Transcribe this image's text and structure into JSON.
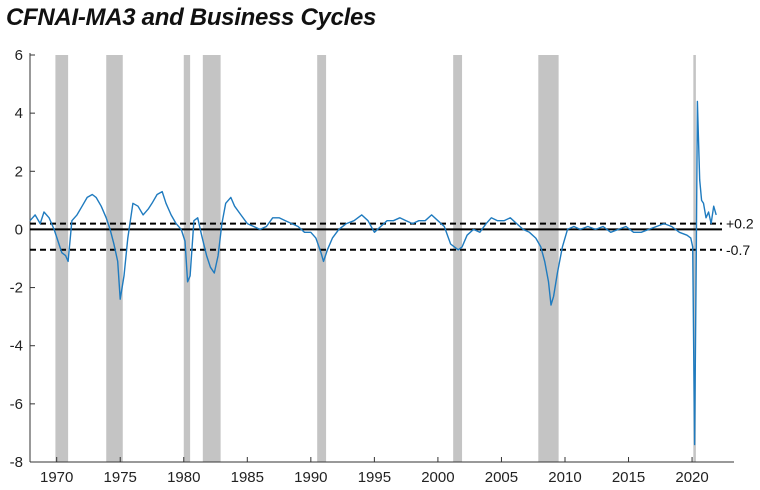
{
  "chart_data": {
    "type": "line",
    "title": "CFNAI-MA3 and Business Cycles",
    "xlabel": "",
    "ylabel": "",
    "xlim": [
      1967.9,
      2023.3
    ],
    "ylim": [
      -8,
      6
    ],
    "y_ticks": [
      "6",
      "4",
      "2",
      "0",
      "-2",
      "-4",
      "-6",
      "-8"
    ],
    "y_tick_values": [
      6,
      4,
      2,
      0,
      -2,
      -4,
      -6,
      -8
    ],
    "x_ticks": [
      "1970",
      "1975",
      "1980",
      "1985",
      "1990",
      "1995",
      "2000",
      "2005",
      "2010",
      "2015",
      "2020"
    ],
    "x_tick_values": [
      1970,
      1975,
      1980,
      1985,
      1990,
      1995,
      2000,
      2005,
      2010,
      2015,
      2020
    ],
    "grid": false,
    "colors": {
      "series": "#1f7bbf",
      "recession": "#c4c4c4",
      "reference": "#000000"
    },
    "recessions": [
      {
        "start": 1969.9,
        "end": 1970.9
      },
      {
        "start": 1973.9,
        "end": 1975.2
      },
      {
        "start": 1980.0,
        "end": 1980.5
      },
      {
        "start": 1981.5,
        "end": 1982.9
      },
      {
        "start": 1990.5,
        "end": 1991.2
      },
      {
        "start": 2001.2,
        "end": 2001.9
      },
      {
        "start": 2007.9,
        "end": 2009.5
      },
      {
        "start": 2020.1,
        "end": 2020.3
      }
    ],
    "reference_lines": [
      {
        "value": 0.2,
        "label": "+0.2",
        "style": "dashed"
      },
      {
        "value": 0,
        "label": "",
        "style": "solid"
      },
      {
        "value": -0.7,
        "label": "-0.7",
        "style": "dashed"
      }
    ],
    "series": [
      {
        "x": [
          1967.9,
          1968.3,
          1968.7,
          1969.0,
          1969.4,
          1969.8,
          1970.1,
          1970.4,
          1970.7,
          1970.9,
          1971.2,
          1971.6,
          1972.0,
          1972.4,
          1972.8,
          1973.1,
          1973.5,
          1973.9,
          1974.2,
          1974.5,
          1974.8,
          1975.0,
          1975.3,
          1975.6,
          1976.0,
          1976.4,
          1976.8,
          1977.2,
          1977.5,
          1977.9,
          1978.3,
          1978.6,
          1979.0,
          1979.4,
          1979.8,
          1980.1,
          1980.3,
          1980.5,
          1980.8,
          1981.1,
          1981.4,
          1981.8,
          1982.1,
          1982.4,
          1982.7,
          1983.0,
          1983.3,
          1983.7,
          1984.0,
          1984.5,
          1985.0,
          1985.5,
          1986.0,
          1986.5,
          1987.0,
          1987.5,
          1988.0,
          1988.5,
          1989.0,
          1989.5,
          1990.0,
          1990.4,
          1990.8,
          1991.0,
          1991.3,
          1991.7,
          1992.2,
          1992.8,
          1993.4,
          1994.0,
          1994.5,
          1995.0,
          1995.5,
          1996.0,
          1996.5,
          1997.0,
          1997.5,
          1998.0,
          1998.5,
          1999.0,
          1999.5,
          2000.0,
          2000.5,
          2001.0,
          2001.3,
          2001.6,
          2001.9,
          2002.3,
          2002.8,
          2003.3,
          2003.8,
          2004.2,
          2004.7,
          2005.2,
          2005.7,
          2006.2,
          2006.7,
          2007.2,
          2007.7,
          2008.1,
          2008.4,
          2008.7,
          2008.9,
          2009.1,
          2009.4,
          2009.8,
          2010.2,
          2010.7,
          2011.2,
          2011.8,
          2012.4,
          2013.0,
          2013.6,
          2014.2,
          2014.8,
          2015.4,
          2016.0,
          2016.6,
          2017.2,
          2017.8,
          2018.4,
          2019.0,
          2019.6,
          2019.9,
          2020.05,
          2020.2,
          2020.33,
          2020.42,
          2020.5,
          2020.6,
          2020.75,
          2020.9,
          2021.1,
          2021.3,
          2021.5,
          2021.7,
          2021.9
        ],
        "values": [
          0.3,
          0.5,
          0.2,
          0.6,
          0.4,
          0.0,
          -0.4,
          -0.8,
          -0.9,
          -1.1,
          0.3,
          0.5,
          0.8,
          1.1,
          1.2,
          1.1,
          0.8,
          0.4,
          0.0,
          -0.5,
          -1.1,
          -2.4,
          -1.6,
          -0.3,
          0.9,
          0.8,
          0.5,
          0.7,
          0.9,
          1.2,
          1.3,
          0.9,
          0.5,
          0.2,
          0.0,
          -0.4,
          -1.8,
          -1.6,
          0.3,
          0.4,
          -0.2,
          -0.9,
          -1.3,
          -1.5,
          -0.9,
          0.2,
          0.9,
          1.1,
          0.8,
          0.5,
          0.2,
          0.1,
          0.0,
          0.1,
          0.4,
          0.4,
          0.3,
          0.2,
          0.1,
          -0.1,
          -0.1,
          -0.3,
          -0.8,
          -1.1,
          -0.7,
          -0.3,
          0.0,
          0.2,
          0.3,
          0.5,
          0.3,
          -0.1,
          0.1,
          0.3,
          0.3,
          0.4,
          0.3,
          0.2,
          0.3,
          0.3,
          0.5,
          0.3,
          0.1,
          -0.5,
          -0.6,
          -0.7,
          -0.6,
          -0.2,
          0.0,
          -0.1,
          0.2,
          0.4,
          0.3,
          0.3,
          0.4,
          0.2,
          0.0,
          -0.1,
          -0.3,
          -0.6,
          -1.1,
          -1.8,
          -2.6,
          -2.3,
          -1.5,
          -0.6,
          0.0,
          0.1,
          0.0,
          0.1,
          0.0,
          0.1,
          -0.1,
          0.0,
          0.1,
          -0.1,
          -0.1,
          0.0,
          0.1,
          0.2,
          0.1,
          -0.1,
          -0.2,
          -0.3,
          -0.6,
          -7.4,
          -0.8,
          4.4,
          3.2,
          1.7,
          1.0,
          0.9,
          0.4,
          0.6,
          0.2,
          0.8,
          0.5
        ]
      }
    ]
  }
}
